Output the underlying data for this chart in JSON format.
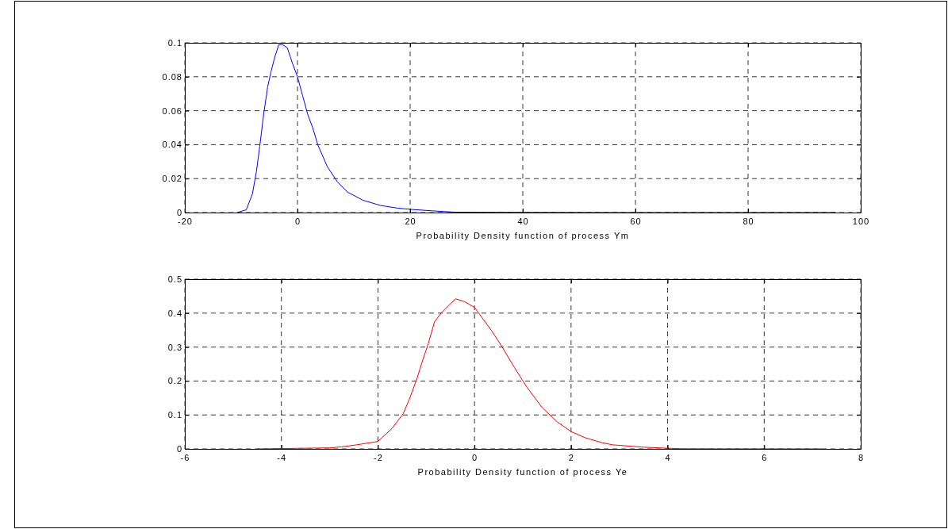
{
  "chart_data": [
    {
      "type": "line",
      "xlabel": "Probability Density function of process Ym",
      "xlim": [
        -20,
        100
      ],
      "xticks": [
        -20,
        0,
        20,
        40,
        60,
        80,
        100
      ],
      "ylim": [
        0,
        0.1
      ],
      "yticks": [
        0,
        0.02,
        0.04,
        0.06,
        0.08,
        0.1
      ],
      "grid": true,
      "line_style": "solid",
      "series": [
        {
          "color": "#0000ff",
          "x": [
            -10.7,
            -9.1,
            -8.0,
            -7.3,
            -6.7,
            -6.0,
            -5.3,
            -4.7,
            -4.0,
            -3.3,
            -2.7,
            -1.8,
            -0.9,
            0,
            0.9,
            1.8,
            2.7,
            3.6,
            5.3,
            7.1,
            8.9,
            11.6,
            14.7,
            17.8,
            20,
            24,
            28,
            40,
            60,
            80,
            95.5
          ],
          "values": [
            0,
            0.0016,
            0.011,
            0.024,
            0.039,
            0.058,
            0.074,
            0.083,
            0.092,
            0.099,
            0.099,
            0.097,
            0.088,
            0.08,
            0.069,
            0.058,
            0.05,
            0.04,
            0.027,
            0.018,
            0.012,
            0.0073,
            0.0042,
            0.0026,
            0.0019,
            0.001,
            0.0002,
            0.0001,
            0,
            0,
            0
          ]
        }
      ]
    },
    {
      "type": "line",
      "xlabel": "Probability Density function of process Ye",
      "xlim": [
        -6,
        8
      ],
      "xticks": [
        -6,
        -4,
        -2,
        0,
        2,
        4,
        6,
        8
      ],
      "ylim": [
        0,
        0.5
      ],
      "yticks": [
        0,
        0.1,
        0.2,
        0.3,
        0.4,
        0.5
      ],
      "grid": true,
      "line_style": "solid",
      "series": [
        {
          "color": "#ff0000",
          "x": [
            -4.5,
            -4,
            -3,
            -2.75,
            -2.44,
            -2.0,
            -1.71,
            -1.48,
            -1.35,
            -1.19,
            -1.09,
            -0.96,
            -0.83,
            -0.68,
            -0.52,
            -0.39,
            -0.21,
            0,
            0.16,
            0.36,
            0.57,
            0.83,
            1.09,
            1.4,
            1.71,
            2.0,
            2.29,
            2.65,
            2.86,
            3.5,
            4,
            4.3,
            5,
            7.2
          ],
          "values": [
            0,
            0.001,
            0.003,
            0.006,
            0.012,
            0.022,
            0.06,
            0.103,
            0.146,
            0.208,
            0.254,
            0.309,
            0.374,
            0.402,
            0.425,
            0.442,
            0.434,
            0.417,
            0.386,
            0.347,
            0.301,
            0.239,
            0.181,
            0.122,
            0.08,
            0.051,
            0.033,
            0.018,
            0.012,
            0.005,
            0.002,
            0.0005,
            0.0003,
            0
          ]
        }
      ]
    }
  ]
}
